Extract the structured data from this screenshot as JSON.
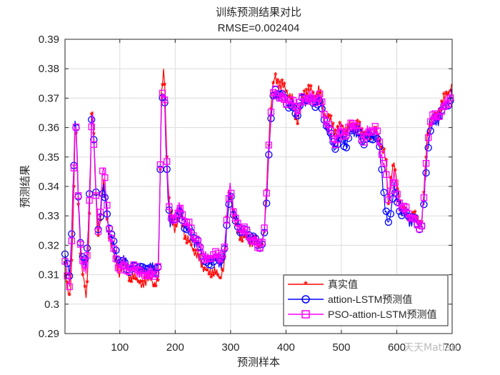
{
  "chart_data": {
    "type": "line",
    "title": "训练预测结果对比",
    "subtitle": "RMSE=0.002404",
    "xlabel": "预测样本",
    "ylabel": "预测结果",
    "xlim": [
      1,
      700
    ],
    "ylim": [
      0.29,
      0.39
    ],
    "xticks": [
      100,
      200,
      300,
      400,
      500,
      600,
      700
    ],
    "yticks": [
      0.29,
      0.3,
      0.31,
      0.32,
      0.33,
      0.34,
      0.35,
      0.36,
      0.37,
      0.38,
      0.39
    ],
    "ytick_labels": [
      "0.29",
      "0.3",
      "0.31",
      "0.32",
      "0.33",
      "0.34",
      "0.35",
      "0.36",
      "0.37",
      "0.38",
      "0.39"
    ],
    "grid": true,
    "legend_position": "southeast",
    "x_keypoints": [
      1,
      5,
      10,
      15,
      20,
      25,
      30,
      35,
      40,
      45,
      50,
      55,
      60,
      65,
      70,
      80,
      90,
      100,
      110,
      120,
      130,
      140,
      150,
      160,
      170,
      175,
      180,
      185,
      190,
      200,
      210,
      220,
      230,
      240,
      250,
      260,
      270,
      280,
      290,
      295,
      300,
      305,
      310,
      320,
      330,
      340,
      350,
      360,
      365,
      370,
      375,
      380,
      390,
      400,
      410,
      420,
      430,
      440,
      450,
      460,
      470,
      480,
      490,
      500,
      510,
      520,
      530,
      540,
      550,
      560,
      570,
      580,
      585,
      590,
      595,
      600,
      610,
      620,
      630,
      640,
      645,
      650,
      655,
      660,
      670,
      680,
      690,
      700
    ],
    "series": [
      {
        "name": "真实值",
        "color": "#ff0000",
        "marker": "asterisk",
        "values": [
          0.312,
          0.305,
          0.302,
          0.325,
          0.364,
          0.335,
          0.315,
          0.308,
          0.3,
          0.33,
          0.372,
          0.345,
          0.322,
          0.33,
          0.342,
          0.325,
          0.315,
          0.311,
          0.313,
          0.308,
          0.31,
          0.305,
          0.31,
          0.306,
          0.31,
          0.37,
          0.382,
          0.35,
          0.33,
          0.326,
          0.33,
          0.322,
          0.32,
          0.316,
          0.313,
          0.31,
          0.312,
          0.308,
          0.315,
          0.335,
          0.338,
          0.33,
          0.326,
          0.323,
          0.322,
          0.321,
          0.32,
          0.321,
          0.34,
          0.36,
          0.372,
          0.377,
          0.374,
          0.373,
          0.37,
          0.362,
          0.37,
          0.373,
          0.371,
          0.373,
          0.365,
          0.362,
          0.358,
          0.361,
          0.359,
          0.362,
          0.36,
          0.358,
          0.356,
          0.36,
          0.355,
          0.35,
          0.332,
          0.345,
          0.348,
          0.34,
          0.333,
          0.33,
          0.329,
          0.328,
          0.328,
          0.34,
          0.358,
          0.362,
          0.364,
          0.366,
          0.372,
          0.373
        ]
      },
      {
        "name": "attion-LSTM预测值",
        "color": "#0000ff",
        "marker": "circle",
        "values": [
          0.316,
          0.313,
          0.31,
          0.337,
          0.366,
          0.337,
          0.318,
          0.314,
          0.312,
          0.337,
          0.369,
          0.346,
          0.326,
          0.332,
          0.34,
          0.327,
          0.318,
          0.314,
          0.315,
          0.312,
          0.313,
          0.31,
          0.313,
          0.312,
          0.314,
          0.366,
          0.374,
          0.345,
          0.326,
          0.33,
          0.332,
          0.326,
          0.323,
          0.32,
          0.317,
          0.314,
          0.316,
          0.313,
          0.318,
          0.33,
          0.34,
          0.332,
          0.328,
          0.325,
          0.323,
          0.322,
          0.321,
          0.322,
          0.335,
          0.356,
          0.367,
          0.371,
          0.371,
          0.37,
          0.368,
          0.364,
          0.368,
          0.37,
          0.369,
          0.37,
          0.362,
          0.356,
          0.353,
          0.358,
          0.354,
          0.36,
          0.357,
          0.355,
          0.358,
          0.358,
          0.352,
          0.33,
          0.327,
          0.333,
          0.34,
          0.336,
          0.331,
          0.329,
          0.328,
          0.327,
          0.328,
          0.336,
          0.352,
          0.359,
          0.362,
          0.364,
          0.369,
          0.371
        ]
      },
      {
        "name": "PSO-attion-LSTM预测值",
        "color": "#ff00ff",
        "marker": "square",
        "values": [
          0.315,
          0.31,
          0.307,
          0.335,
          0.365,
          0.336,
          0.316,
          0.312,
          0.31,
          0.336,
          0.368,
          0.346,
          0.325,
          0.333,
          0.348,
          0.326,
          0.316,
          0.313,
          0.314,
          0.311,
          0.312,
          0.309,
          0.312,
          0.31,
          0.313,
          0.367,
          0.374,
          0.348,
          0.328,
          0.331,
          0.333,
          0.327,
          0.324,
          0.321,
          0.318,
          0.315,
          0.317,
          0.314,
          0.32,
          0.334,
          0.342,
          0.333,
          0.328,
          0.325,
          0.323,
          0.322,
          0.321,
          0.322,
          0.337,
          0.358,
          0.368,
          0.372,
          0.371,
          0.37,
          0.369,
          0.365,
          0.369,
          0.371,
          0.37,
          0.371,
          0.363,
          0.358,
          0.356,
          0.36,
          0.357,
          0.361,
          0.359,
          0.357,
          0.359,
          0.36,
          0.353,
          0.345,
          0.336,
          0.342,
          0.344,
          0.338,
          0.332,
          0.33,
          0.329,
          0.328,
          0.328,
          0.338,
          0.354,
          0.361,
          0.363,
          0.365,
          0.37,
          0.371
        ]
      }
    ]
  },
  "legend": {
    "items": [
      {
        "label": "真实值",
        "color": "#ff0000",
        "marker": "asterisk"
      },
      {
        "label": "attion-LSTM预测值",
        "color": "#0000ff",
        "marker": "circle"
      },
      {
        "label": "PSO-attion-LSTM预测值",
        "color": "#ff00ff",
        "marker": "square"
      }
    ]
  },
  "watermark": {
    "text": "天天Matlab"
  }
}
